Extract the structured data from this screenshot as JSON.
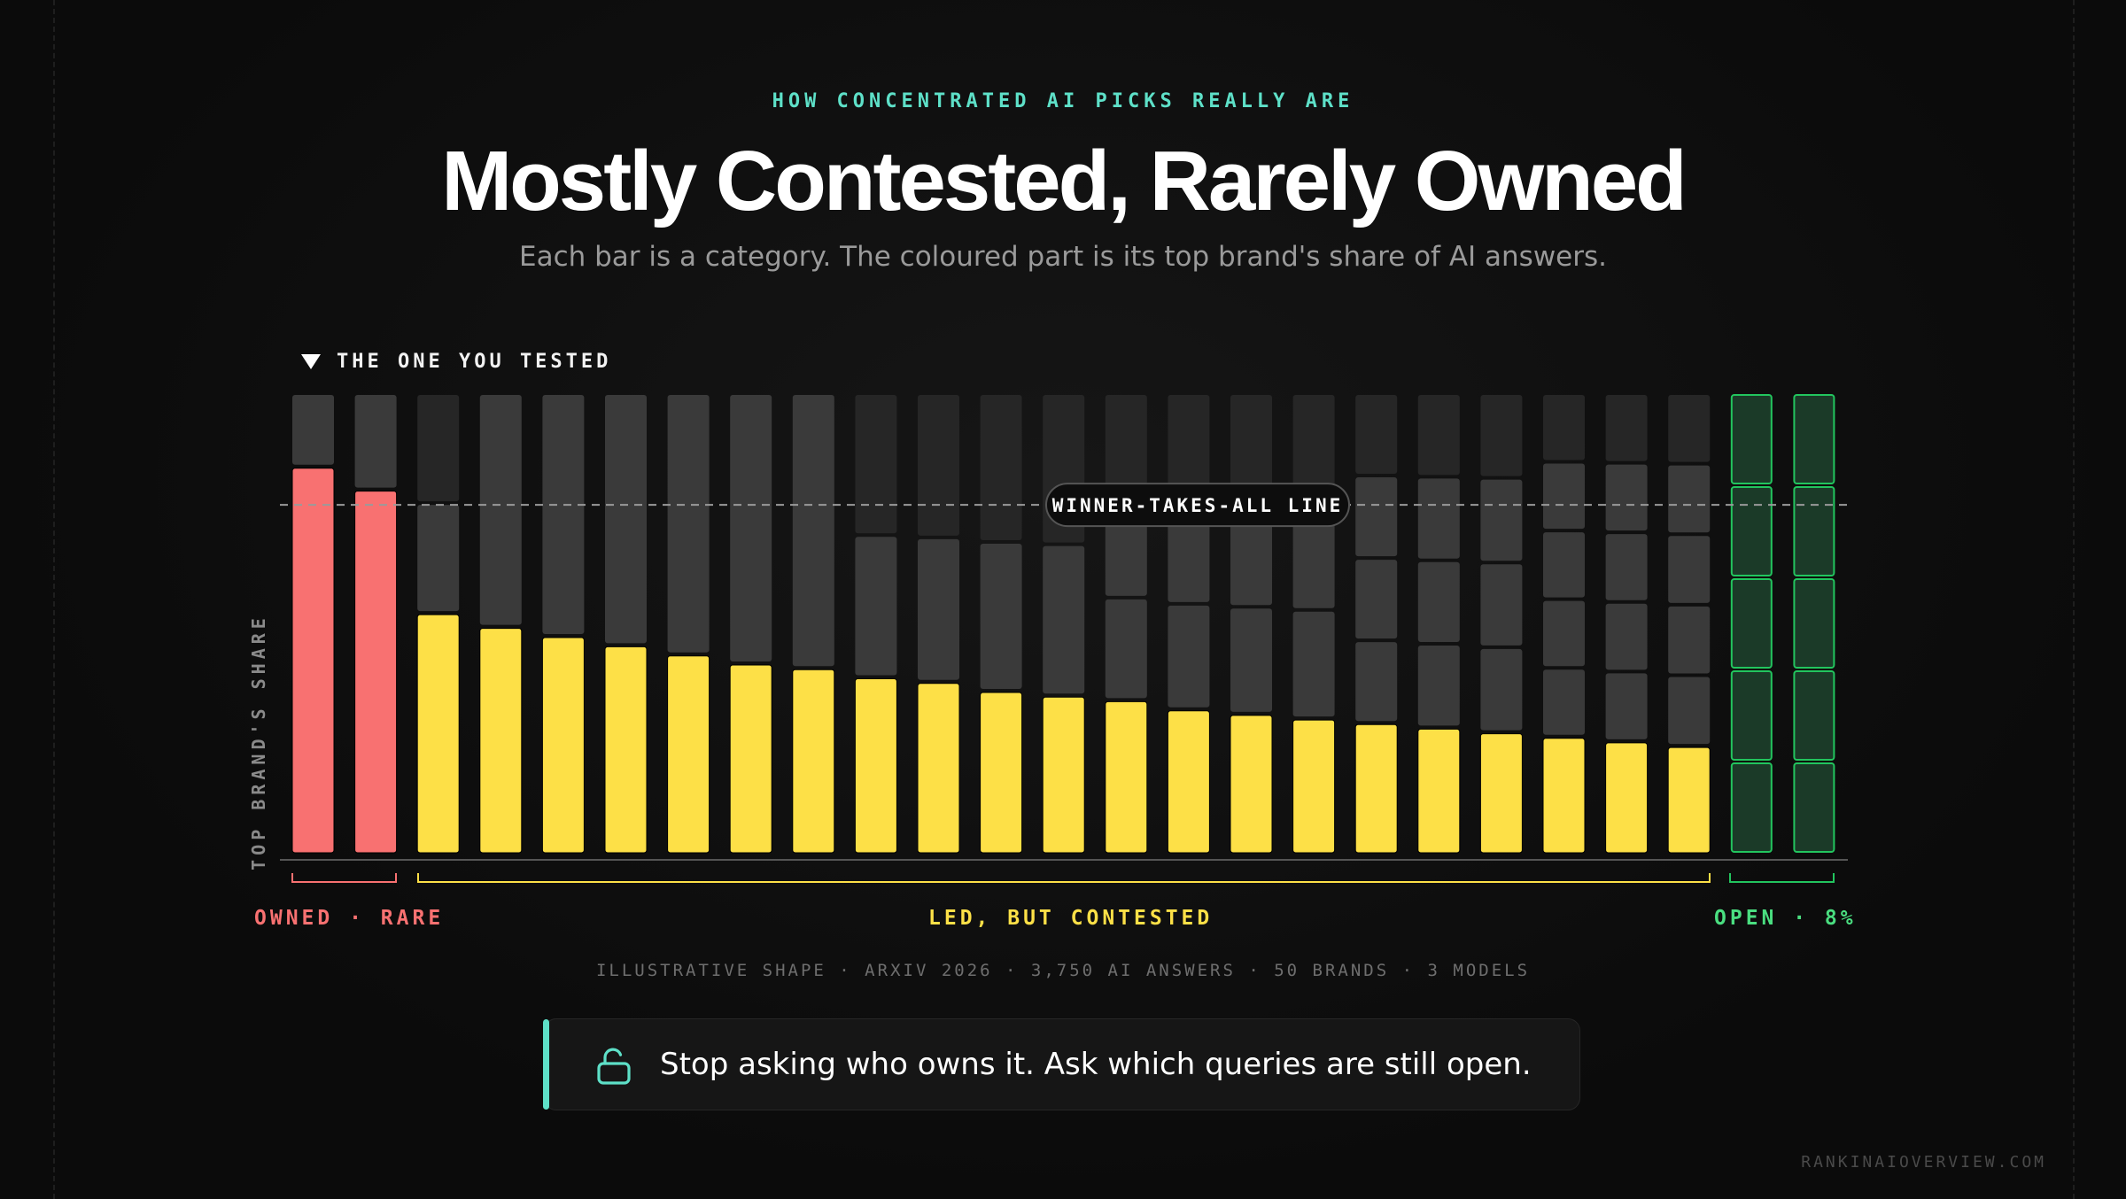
{
  "header": {
    "eyebrow": "HOW CONCENTRATED AI PICKS REALLY ARE",
    "title": "Mostly Contested, Rarely Owned",
    "subtitle": "Each bar is a category. The coloured part is its top brand's share of AI answers."
  },
  "chart_data": {
    "type": "bar",
    "ylabel": "TOP BRAND'S SHARE",
    "marker_label": "THE ONE YOU TESTED",
    "reference_line": {
      "label": "WINNER-TAKES-ALL LINE",
      "value": 0.76
    },
    "ylim": [
      0,
      1
    ],
    "grid": false,
    "groups": [
      {
        "name": "OWNED · RARE",
        "color": "#f87171",
        "count": 2
      },
      {
        "name": "LED, BUT CONTESTED",
        "color": "#fde047",
        "count": 21
      },
      {
        "name": "OPEN · 8%",
        "color": "#22c55e",
        "count": 2
      }
    ],
    "series": [
      {
        "values": [
          0.84,
          0.79,
          0.52,
          0.49,
          0.47,
          0.45,
          0.43,
          0.41,
          0.4,
          0.38,
          0.37,
          0.35,
          0.34,
          0.33,
          0.31,
          0.3,
          0.29,
          0.28,
          0.27,
          0.26,
          0.25,
          0.24,
          0.23,
          0.0,
          0.0
        ],
        "groups": [
          "owned",
          "owned",
          "contested",
          "contested",
          "contested",
          "contested",
          "contested",
          "contested",
          "contested",
          "contested",
          "contested",
          "contested",
          "contested",
          "contested",
          "contested",
          "contested",
          "contested",
          "contested",
          "contested",
          "contested",
          "contested",
          "contested",
          "contested",
          "open",
          "open"
        ]
      }
    ],
    "remainder_segments": [
      [
        1
      ],
      [
        1
      ],
      [
        1,
        1
      ],
      [
        1
      ],
      [
        1
      ],
      [
        1
      ],
      [
        1
      ],
      [
        1
      ],
      [
        1
      ],
      [
        1,
        1
      ],
      [
        1,
        1
      ],
      [
        1,
        1
      ],
      [
        1,
        1
      ],
      [
        1,
        1,
        1
      ],
      [
        1,
        1,
        1
      ],
      [
        1,
        1,
        1
      ],
      [
        1,
        1,
        1
      ],
      [
        1,
        1,
        1,
        1
      ],
      [
        1,
        1,
        1,
        1
      ],
      [
        1,
        1,
        1,
        1
      ],
      [
        1,
        1,
        1,
        1,
        1
      ],
      [
        1,
        1,
        1,
        1,
        1
      ],
      [
        1,
        1,
        1,
        1,
        1
      ],
      [
        1,
        1,
        1,
        1,
        1
      ],
      [
        1,
        1,
        1,
        1,
        1
      ]
    ],
    "colors": {
      "owned": "#f87171",
      "contested": "#fde047",
      "open_fill": "#1b3a28",
      "open_stroke": "#22c55e",
      "remainder": "#3a3a3a",
      "remainder_dark": "#262626"
    }
  },
  "footnote": "ILLUSTRATIVE SHAPE · ARXIV 2026 · 3,750 AI ANSWERS · 50 BRANDS · 3 MODELS",
  "callout": {
    "icon": "unlock-icon",
    "text": "Stop asking who owns it. Ask which queries are still open.",
    "accent": "#5ee0c8"
  },
  "site": "RANKINAIOVERVIEW.COM"
}
